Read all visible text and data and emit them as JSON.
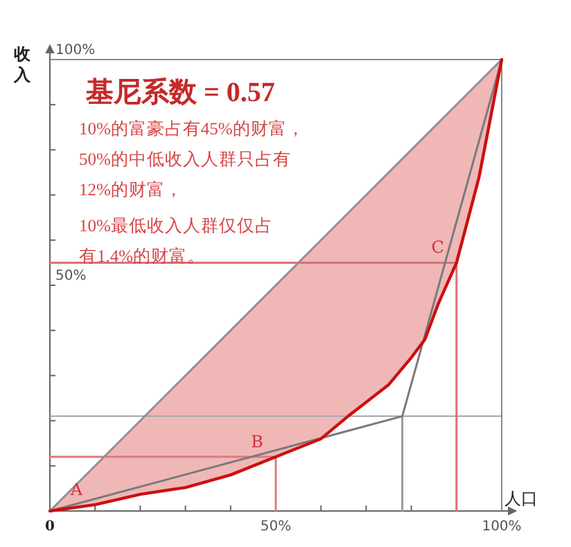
{
  "chart_data": {
    "type": "line",
    "title": "基尼系数 = 0.57",
    "xlabel": "人口",
    "ylabel": "收入",
    "xlim": [
      0,
      100
    ],
    "ylim": [
      0,
      100
    ],
    "xticks": [
      {
        "value": 0,
        "label": "0"
      },
      {
        "value": 10,
        "label": null
      },
      {
        "value": 20,
        "label": null
      },
      {
        "value": 30,
        "label": null
      },
      {
        "value": 40,
        "label": null
      },
      {
        "value": 50,
        "label": "50%"
      },
      {
        "value": 60,
        "label": null
      },
      {
        "value": 70,
        "label": null
      },
      {
        "value": 80,
        "label": null
      },
      {
        "value": 90,
        "label": null
      },
      {
        "value": 100,
        "label": "100%"
      }
    ],
    "yticks": [
      {
        "value": 10,
        "label": null
      },
      {
        "value": 20,
        "label": null
      },
      {
        "value": 30,
        "label": null
      },
      {
        "value": 40,
        "label": null
      },
      {
        "value": 50,
        "label": "50%"
      },
      {
        "value": 60,
        "label": null
      },
      {
        "value": 70,
        "label": null
      },
      {
        "value": 80,
        "label": null
      },
      {
        "value": 90,
        "label": null
      },
      {
        "value": 100,
        "label": "100%"
      }
    ],
    "grid": false,
    "marker": "none",
    "line_style": "solid",
    "ref_lines": [
      {
        "axis": "y",
        "value": 21,
        "color": "#a8a8a8"
      },
      {
        "axis": "x",
        "value": 100,
        "color": "#888888"
      },
      {
        "axis": "y",
        "value": 100,
        "color": "#8c8c8c"
      }
    ],
    "series": [
      {
        "type": "line",
        "color": "#9c9c9c",
        "x": [
          78,
          78
        ],
        "values": [
          0,
          21
        ]
      },
      {
        "type": "line",
        "color": "#e07a80",
        "x": [
          0,
          50,
          50
        ],
        "values": [
          12,
          12,
          0
        ]
      },
      {
        "type": "line",
        "color": "#d9707c",
        "x": [
          0,
          90,
          90
        ],
        "values": [
          55,
          55,
          0
        ]
      },
      {
        "type": "line",
        "color": "#909090",
        "x": [
          0,
          100
        ],
        "values": [
          0,
          100
        ]
      },
      {
        "type": "line",
        "color": "#7a7a7a",
        "x": [
          0,
          78,
          100
        ],
        "values": [
          0,
          21,
          100
        ]
      },
      {
        "type": "line",
        "color": "#cc1010",
        "x": [
          0,
          10,
          20,
          30,
          40,
          50,
          60,
          66,
          75,
          80,
          83,
          86,
          90,
          95,
          100
        ],
        "values": [
          0,
          1.4,
          3.7,
          5.2,
          8,
          12,
          16,
          21,
          28,
          34,
          38,
          46,
          55,
          74,
          100
        ],
        "lower": [
          0,
          1.4,
          3.7,
          5.2,
          8,
          12,
          16,
          21,
          28,
          34,
          38,
          46,
          55,
          74,
          100
        ],
        "upper": [
          0,
          10,
          20,
          30,
          40,
          50,
          60,
          66,
          75,
          80,
          83,
          86,
          90,
          95,
          100
        ]
      }
    ],
    "annotations": [
      "10%的富豪占有45%的财富，",
      "50%的中低收入人群只占有",
      "12%的财富，",
      "10%最低收入人群仅仅占",
      "有1.4%的财富。",
      {
        "text": "A",
        "x": 10,
        "y": 1.4
      },
      {
        "text": "B",
        "x": 50,
        "y": 12
      },
      {
        "text": "C",
        "x": 90,
        "y": 55
      }
    ]
  }
}
